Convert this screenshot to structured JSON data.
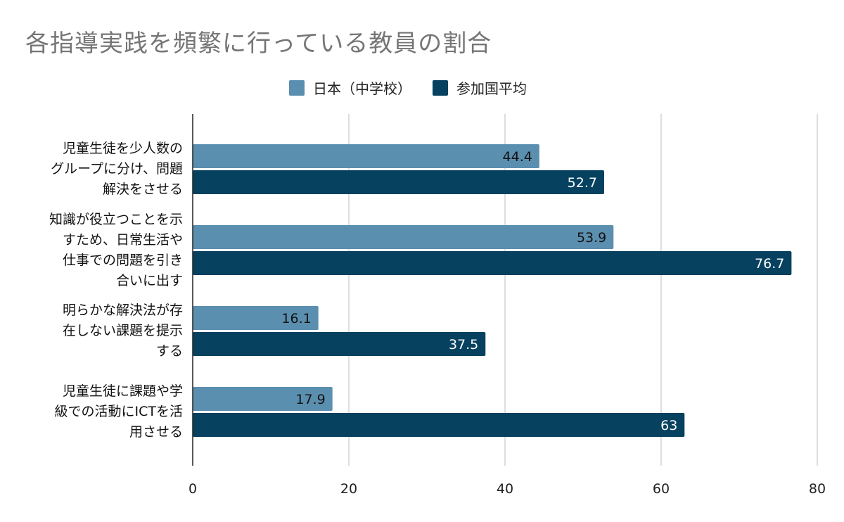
{
  "chart_data": {
    "type": "bar",
    "orientation": "horizontal",
    "title": "各指導実践を頻繁に行っている教員の割合",
    "categories": [
      [
        "児童生徒を少人数の",
        "グループに分け、問題",
        "解決をさせる"
      ],
      [
        "知識が役立つことを示",
        "すため、日常生活や",
        "仕事での問題を引き",
        "合いに出す"
      ],
      [
        "明らかな解決法が存",
        "在しない課題を提示",
        "する"
      ],
      [
        "児童生徒に課題や学",
        "級での活動にICTを活",
        "用させる"
      ]
    ],
    "series": [
      {
        "name": "日本（中学校）",
        "color": "#5b8fb0",
        "values": [
          44.4,
          53.9,
          16.1,
          17.9
        ]
      },
      {
        "name": "参加国平均",
        "color": "#06415f",
        "values": [
          52.7,
          76.7,
          37.5,
          63
        ]
      }
    ],
    "value_labels": [
      [
        "44.4",
        "53.9",
        "16.1",
        "17.9"
      ],
      [
        "52.7",
        "76.7",
        "37.5",
        "63"
      ]
    ],
    "xlim": [
      0,
      80
    ],
    "x_ticks": [
      "0",
      "20",
      "40",
      "60",
      "80"
    ],
    "grid": true,
    "legend_position": "top-center"
  }
}
